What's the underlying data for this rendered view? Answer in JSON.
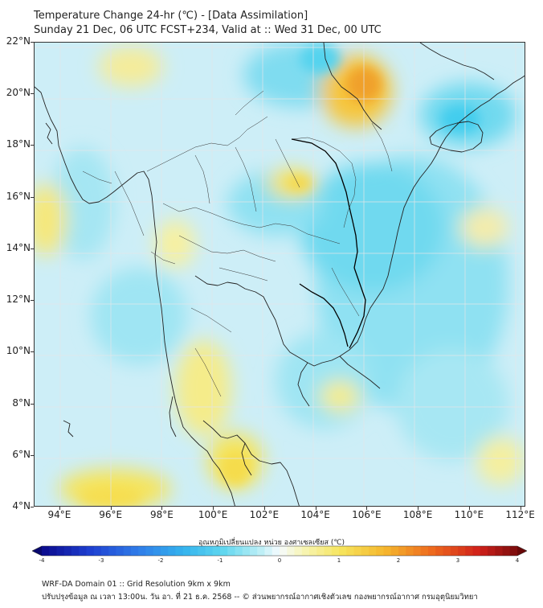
{
  "header": {
    "title": "Temperature Change 24-hr (℃) - [Data Assimilation]",
    "subtitle": "Sunday 21 Dec, 06 UTC FCST+234, Valid at :: Wed 31 Dec, 00 UTC"
  },
  "map": {
    "lat_labels": [
      "22°N",
      "20°N",
      "18°N",
      "16°N",
      "14°N",
      "12°N",
      "10°N",
      "8°N",
      "6°N",
      "4°N"
    ],
    "lon_labels": [
      "94°E",
      "96°E",
      "98°E",
      "100°E",
      "102°E",
      "104°E",
      "106°E",
      "108°E",
      "110°E",
      "112°E"
    ],
    "lat_range": [
      4,
      22
    ],
    "lon_range": [
      93,
      112.2
    ],
    "colors": {
      "ocean_base": "#cfeff7",
      "warm": "#f5e65a",
      "warm_strong": "#f3b02b",
      "cool": "#5fd6ef",
      "land_line": "#222222"
    }
  },
  "colorbar": {
    "label": "อุณหภูมิเปลี่ยนแปลง หน่วย องศาเซลเซียส (℃)",
    "ticks": [
      "-4",
      "-3",
      "-2",
      "-1",
      "0",
      "1",
      "2",
      "3",
      "4"
    ],
    "range": [
      -4,
      4
    ]
  },
  "footer": {
    "line1": "WRF-DA Domain 01 :: Grid Resolution 9km x 9km",
    "line2": "ปรับปรุงข้อมูล ณ เวลา 13:00น. วัน อา. ที่ 21 ธ.ค. 2568 -- © ส่วนพยากรณ์อากาศเชิงตัวเลข กองพยากรณ์อากาศ กรมอุตุนิยมวิทยา"
  }
}
